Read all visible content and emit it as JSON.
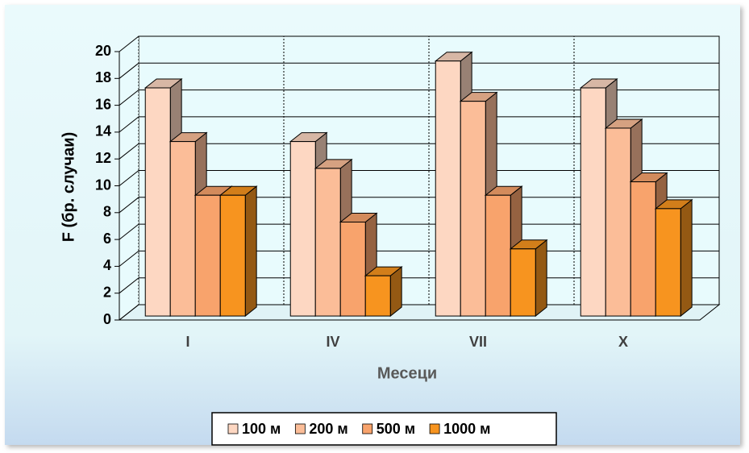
{
  "chart_data": {
    "type": "bar3d",
    "xlabel": "Месеци",
    "ylabel": "F (бр. случаи)",
    "categories": [
      "I",
      "IV",
      "VII",
      "X"
    ],
    "series": [
      {
        "name": "100 м",
        "color": "#fdd7c2",
        "values": [
          17,
          13,
          19,
          17
        ]
      },
      {
        "name": "200 м",
        "color": "#fbbd98",
        "values": [
          13,
          11,
          16,
          14
        ]
      },
      {
        "name": "500 м",
        "color": "#f8a36c",
        "values": [
          9,
          7,
          9,
          10
        ]
      },
      {
        "name": "1000 м",
        "color": "#f7941f",
        "values": [
          9,
          3,
          5,
          8
        ]
      }
    ],
    "ylim": [
      0,
      20
    ],
    "yticks": [
      0,
      2,
      4,
      6,
      8,
      10,
      12,
      14,
      16,
      18,
      20
    ],
    "grid": true,
    "legend": "bottom"
  }
}
